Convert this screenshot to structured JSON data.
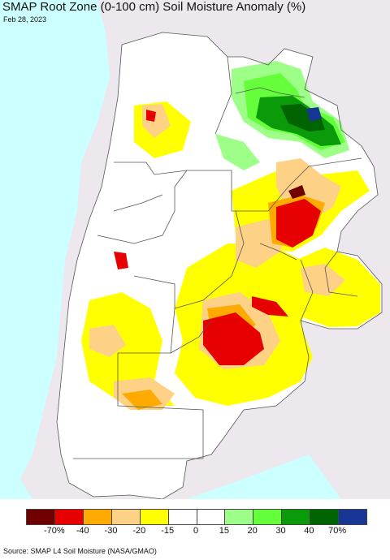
{
  "title": "SMAP Root Zone (0-100 cm) Soil Moisture Anomaly (%)",
  "date": "Feb 28, 2023",
  "source": "Source: SMAP L4 Soil Moisture (NASA/GMAO)",
  "colors": {
    "ocean": "#ccffff",
    "outside_land": "#ede8ee",
    "border": "#555555"
  },
  "legend": {
    "swatches": [
      "#700000",
      "#e60000",
      "#ffaa00",
      "#fdd286",
      "#ffff00",
      "#ffffff",
      "#ffffff",
      "#9dff88",
      "#64ff3a",
      "#0a9a0a",
      "#006400",
      "#183694"
    ],
    "ticks": [
      "-70%",
      "-40",
      "-30",
      "-20",
      "-15",
      "0",
      "15",
      "20",
      "30",
      "40",
      "70%"
    ]
  }
}
